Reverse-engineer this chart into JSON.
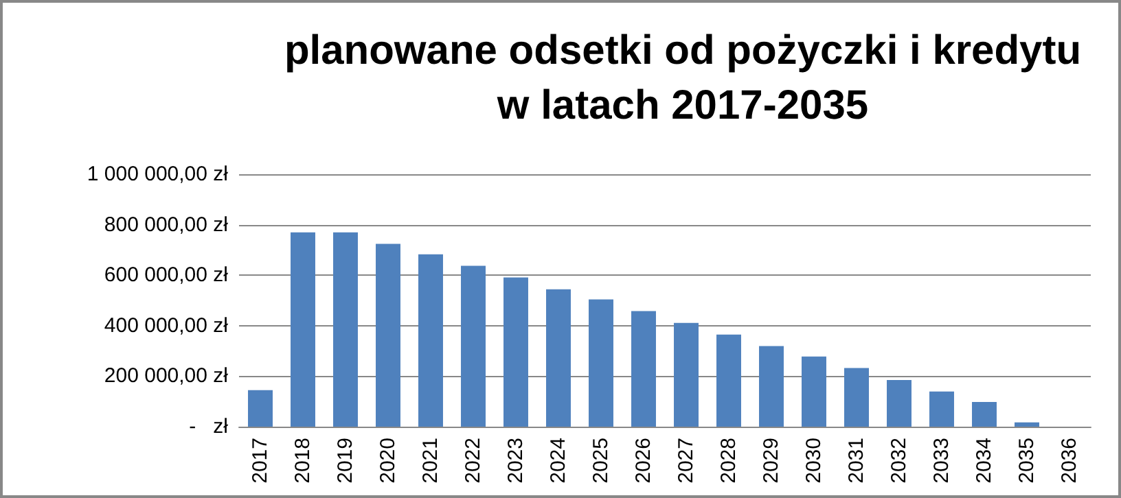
{
  "chart_data": {
    "type": "bar",
    "title": "planowane odsetki od pożyczki i kredytu\nw latach 2017-2035",
    "categories": [
      "2017",
      "2018",
      "2019",
      "2020",
      "2021",
      "2022",
      "2023",
      "2024",
      "2025",
      "2026",
      "2027",
      "2028",
      "2029",
      "2030",
      "2031",
      "2032",
      "2033",
      "2034",
      "2035",
      "2036"
    ],
    "values": [
      145000,
      770000,
      770000,
      724000,
      683000,
      637000,
      591000,
      544000,
      504000,
      458000,
      411000,
      365000,
      319000,
      278000,
      232000,
      185000,
      139000,
      98000,
      17000,
      0
    ],
    "color": "#4f81bd",
    "ylim": [
      0,
      1000000
    ],
    "yticks": [
      {
        "value": 0,
        "label": "-   zł"
      },
      {
        "value": 200000,
        "label": "200 000,00 zł"
      },
      {
        "value": 400000,
        "label": "400 000,00 zł"
      },
      {
        "value": 600000,
        "label": "600 000,00 zł"
      },
      {
        "value": 800000,
        "label": "800 000,00 zł"
      },
      {
        "value": 1000000,
        "label": "1 000 000,00 zł"
      }
    ],
    "grid": "y"
  }
}
